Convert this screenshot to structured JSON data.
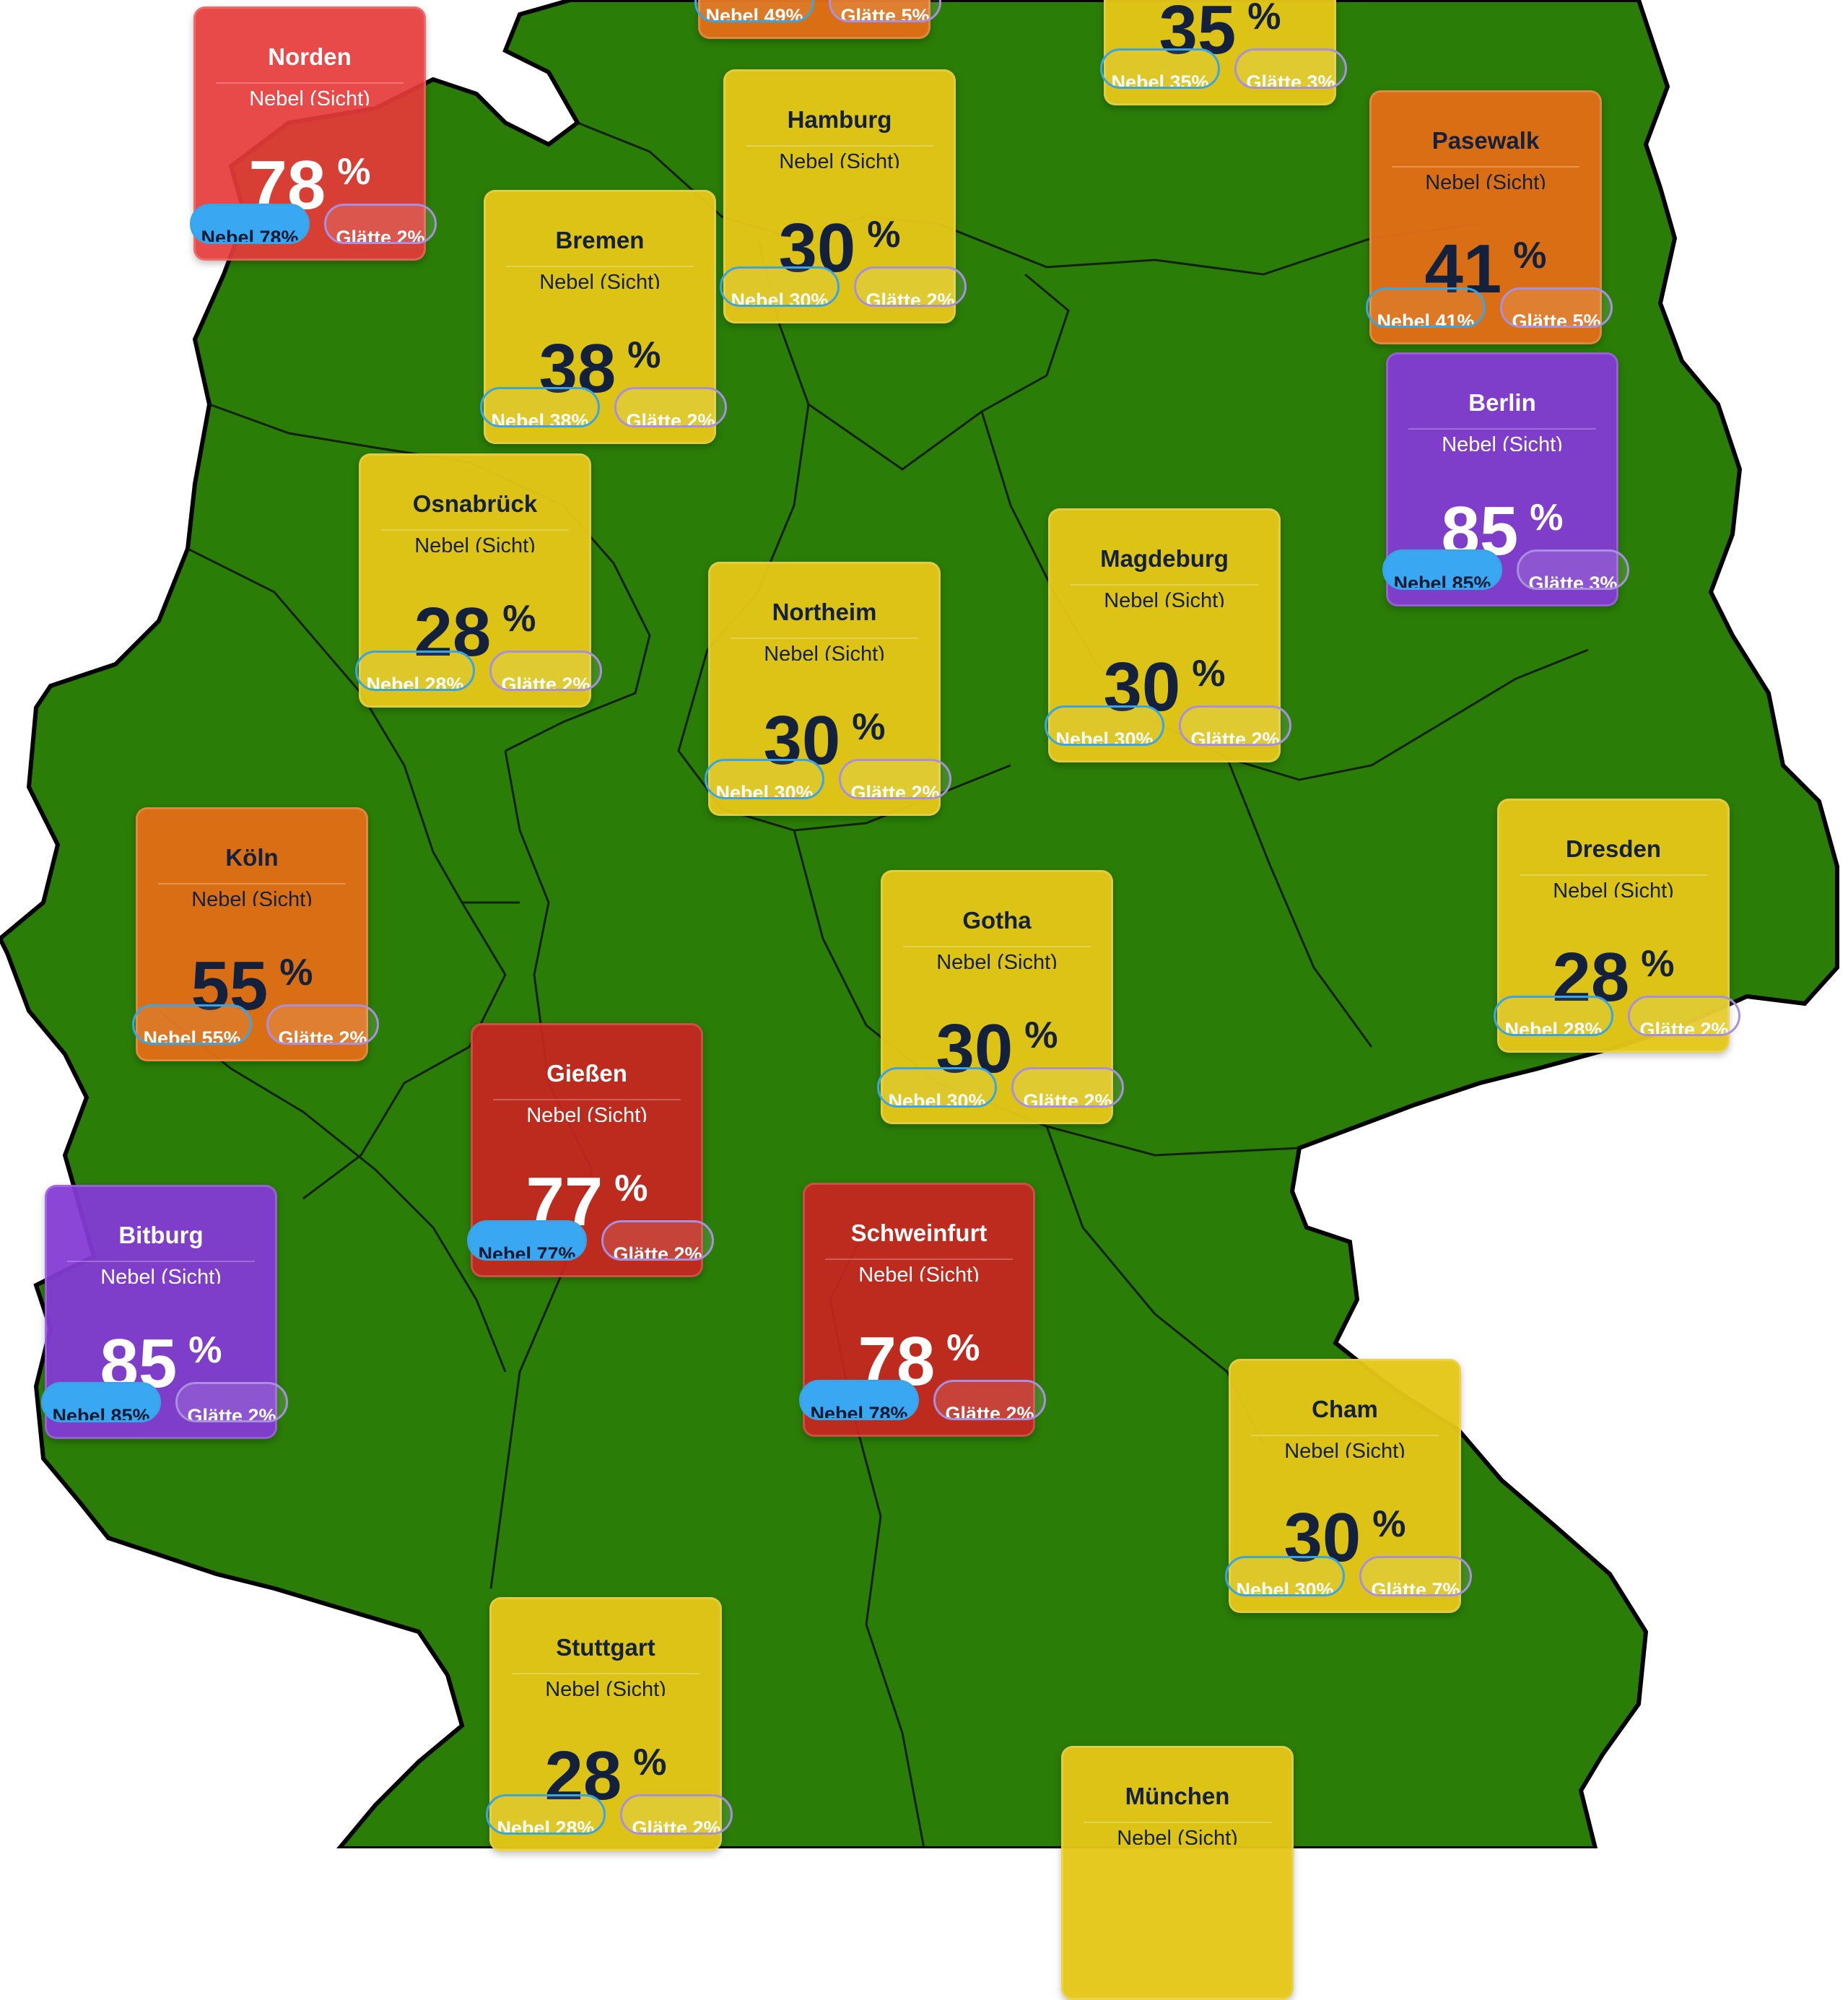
{
  "map": {
    "land_color": "#2a7d07",
    "border_color": "#000000",
    "background_color": "#ffffff"
  },
  "metric_label": "Nebel (Sicht)",
  "percent_sign": "%",
  "pill_nebel_prefix": "Nebel",
  "pill_glatte_prefix": "Glätte",
  "colors": {
    "yellow": "#e4c617",
    "orange": "#e46e16",
    "red": "#c82420",
    "purple": "#843ad6",
    "nebel_pill": "#3aa7f2",
    "glatte_pill_outline": "#a88fe0"
  },
  "cards": [
    {
      "id": "top-partial-a",
      "name": "",
      "value": "",
      "nebel": "Nebel 49%",
      "glatte": "Glätte 5%",
      "color": "orange"
    },
    {
      "id": "top-partial-b",
      "name": "",
      "value": "35",
      "nebel": "Nebel 35%",
      "glatte": "Glätte 3%",
      "color": "yellow"
    },
    {
      "id": "norden",
      "name": "Norden",
      "value": "78",
      "nebel": "Nebel 78%",
      "glatte": "Glätte 2%",
      "color": "red-light"
    },
    {
      "id": "hamburg",
      "name": "Hamburg",
      "value": "30",
      "nebel": "Nebel 30%",
      "glatte": "Glätte 2%",
      "color": "yellow"
    },
    {
      "id": "pasewalk",
      "name": "Pasewalk",
      "value": "41",
      "nebel": "Nebel 41%",
      "glatte": "Glätte 5%",
      "color": "orange"
    },
    {
      "id": "bremen",
      "name": "Bremen",
      "value": "38",
      "nebel": "Nebel 38%",
      "glatte": "Glätte 2%",
      "color": "yellow"
    },
    {
      "id": "berlin",
      "name": "Berlin",
      "value": "85",
      "nebel": "Nebel 85%",
      "glatte": "Glätte 3%",
      "color": "purple"
    },
    {
      "id": "osnabrueck",
      "name": "Osnabrück",
      "value": "28",
      "nebel": "Nebel 28%",
      "glatte": "Glätte 2%",
      "color": "yellow"
    },
    {
      "id": "magdeburg",
      "name": "Magdeburg",
      "value": "30",
      "nebel": "Nebel 30%",
      "glatte": "Glätte 2%",
      "color": "yellow"
    },
    {
      "id": "northeim",
      "name": "Northeim",
      "value": "30",
      "nebel": "Nebel 30%",
      "glatte": "Glätte 2%",
      "color": "yellow"
    },
    {
      "id": "koeln",
      "name": "Köln",
      "value": "55",
      "nebel": "Nebel 55%",
      "glatte": "Glätte 2%",
      "color": "orange"
    },
    {
      "id": "dresden",
      "name": "Dresden",
      "value": "28",
      "nebel": "Nebel 28%",
      "glatte": "Glätte 2%",
      "color": "yellow"
    },
    {
      "id": "gotha",
      "name": "Gotha",
      "value": "30",
      "nebel": "Nebel 30%",
      "glatte": "Glätte 2%",
      "color": "yellow"
    },
    {
      "id": "giessen",
      "name": "Gießen",
      "value": "77",
      "nebel": "Nebel 77%",
      "glatte": "Glätte 2%",
      "color": "red"
    },
    {
      "id": "bitburg",
      "name": "Bitburg",
      "value": "85",
      "nebel": "Nebel 85%",
      "glatte": "Glätte 2%",
      "color": "purple"
    },
    {
      "id": "schweinfurt",
      "name": "Schweinfurt",
      "value": "78",
      "nebel": "Nebel 78%",
      "glatte": "Glätte 2%",
      "color": "red"
    },
    {
      "id": "cham",
      "name": "Cham",
      "value": "30",
      "nebel": "Nebel 30%",
      "glatte": "Glätte 7%",
      "color": "yellow"
    },
    {
      "id": "stuttgart",
      "name": "Stuttgart",
      "value": "28",
      "nebel": "Nebel 28%",
      "glatte": "Glätte 2%",
      "color": "yellow"
    },
    {
      "id": "muenchen",
      "name": "München",
      "value": "",
      "nebel": "",
      "glatte": "",
      "color": "yellow"
    }
  ]
}
